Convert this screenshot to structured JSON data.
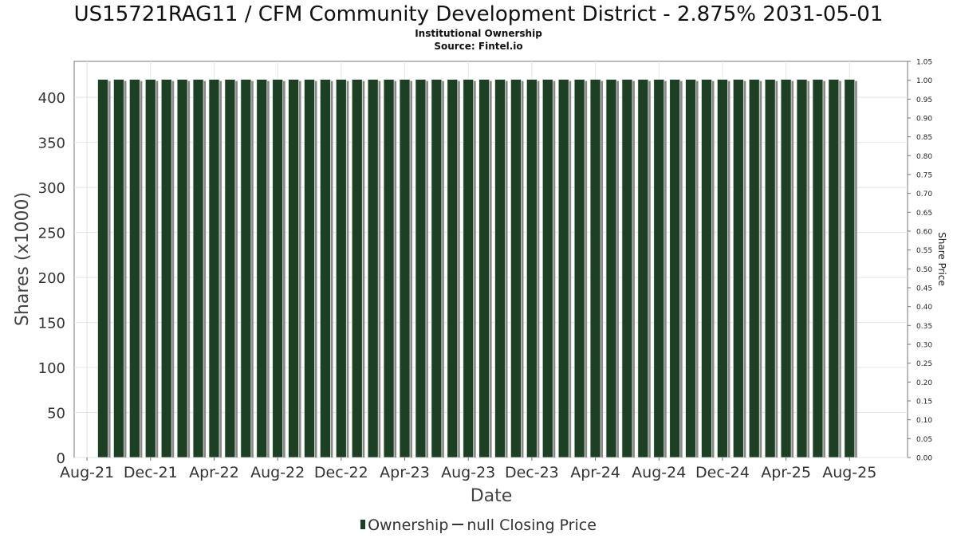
{
  "header": {
    "title": "US15721RAG11 / CFM Community Development District - 2.875% 2031-05-01",
    "subtitle": "Institutional Ownership",
    "source": "Source: Fintel.io"
  },
  "legend": {
    "ownership_label": "Ownership",
    "price_label": "null Closing Price"
  },
  "colors": {
    "bar_fill": "#1d4025",
    "bar_shadow": "#888888",
    "grid": "#e4e4e4",
    "axis": "#777777"
  },
  "chart_data": {
    "type": "bar",
    "title": "US15721RAG11 / CFM Community Development District - 2.875% 2031-05-01",
    "subtitle": "Institutional Ownership",
    "xlabel": "Date",
    "ylabel": "Shares (x1000)",
    "y2label": "Share Price",
    "ylim": [
      0,
      440
    ],
    "y_ticks": [
      0,
      50,
      100,
      150,
      200,
      250,
      300,
      350,
      400
    ],
    "y2lim": [
      0,
      1.05
    ],
    "y2_ticks": [
      "0.00",
      "0.05",
      "0.10",
      "0.15",
      "0.20",
      "0.25",
      "0.30",
      "0.35",
      "0.40",
      "0.45",
      "0.50",
      "0.55",
      "0.60",
      "0.65",
      "0.70",
      "0.75",
      "0.80",
      "0.85",
      "0.90",
      "0.95",
      "1.00",
      "1.05"
    ],
    "x_ticks": [
      "Aug-21",
      "Dec-21",
      "Apr-22",
      "Aug-22",
      "Dec-22",
      "Apr-23",
      "Aug-23",
      "Dec-23",
      "Apr-24",
      "Aug-24",
      "Dec-24",
      "Apr-25",
      "Aug-25"
    ],
    "grid": true,
    "legend_position": "bottom",
    "series": [
      {
        "name": "Ownership",
        "start_month": "2021-09",
        "values": [
          420,
          420,
          420,
          420,
          420,
          420,
          420,
          420,
          420,
          420,
          420,
          420,
          420,
          420,
          420,
          420,
          420,
          420,
          420,
          420,
          420,
          420,
          420,
          420,
          420,
          420,
          420,
          420,
          420,
          420,
          420,
          420,
          420,
          420,
          420,
          420,
          420,
          420,
          420,
          420,
          420,
          420,
          420,
          420,
          420,
          420,
          420,
          420
        ]
      },
      {
        "name": "null Closing Price",
        "values": []
      }
    ]
  }
}
